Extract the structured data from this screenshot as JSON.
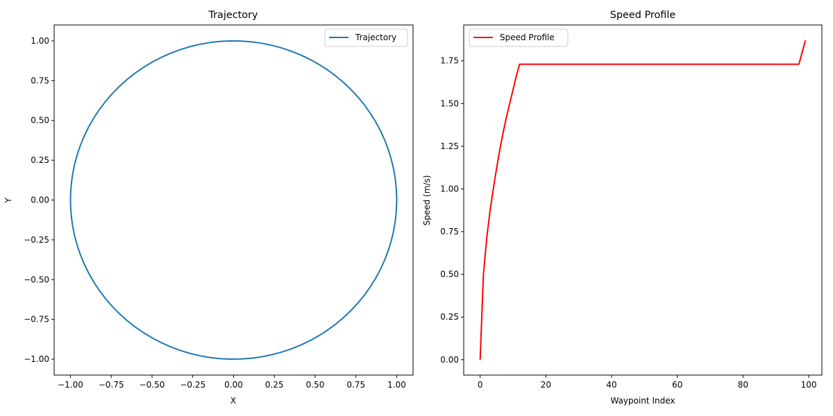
{
  "chart_data": [
    {
      "type": "line",
      "title": "Trajectory",
      "xlabel": "X",
      "ylabel": "Y",
      "xlim": [
        -1.1,
        1.1
      ],
      "ylim": [
        -1.1,
        1.1
      ],
      "xticks": [
        -1.0,
        -0.75,
        -0.5,
        -0.25,
        0.0,
        0.25,
        0.5,
        0.75,
        1.0
      ],
      "xtick_labels": [
        "−1.00",
        "−0.75",
        "−0.50",
        "−0.25",
        "0.00",
        "0.25",
        "0.50",
        "0.75",
        "1.00"
      ],
      "yticks": [
        -1.0,
        -0.75,
        -0.5,
        -0.25,
        0.0,
        0.25,
        0.5,
        0.75,
        1.0
      ],
      "ytick_labels": [
        "−1.00",
        "−0.75",
        "−0.50",
        "−0.25",
        "0.00",
        "0.25",
        "0.50",
        "0.75",
        "1.00"
      ],
      "grid": false,
      "legend": "upper right",
      "series": [
        {
          "name": "Trajectory",
          "color": "#1f77b4",
          "shape": "circle",
          "center": [
            0,
            0
          ],
          "radius": 1.0,
          "points": 100
        }
      ]
    },
    {
      "type": "line",
      "title": "Speed Profile",
      "xlabel": "Waypoint Index",
      "ylabel": "Speed (m/s)",
      "xlim": [
        -5,
        104
      ],
      "ylim": [
        -0.09,
        1.96
      ],
      "xticks": [
        0,
        20,
        40,
        60,
        80,
        100
      ],
      "xtick_labels": [
        "0",
        "20",
        "40",
        "60",
        "80",
        "100"
      ],
      "yticks": [
        0.0,
        0.25,
        0.5,
        0.75,
        1.0,
        1.25,
        1.5,
        1.75
      ],
      "ytick_labels": [
        "0.00",
        "0.25",
        "0.50",
        "0.75",
        "1.00",
        "1.25",
        "1.50",
        "1.75"
      ],
      "grid": false,
      "legend": "upper left",
      "series": [
        {
          "name": "Speed Profile",
          "color": "#ff0000",
          "x": [
            0,
            1,
            2,
            3,
            4,
            5,
            6,
            7,
            8,
            9,
            10,
            11,
            12,
            20,
            40,
            60,
            80,
            97,
            98,
            99
          ],
          "y": [
            0.0,
            0.5,
            0.71,
            0.87,
            1.0,
            1.12,
            1.23,
            1.33,
            1.42,
            1.5,
            1.58,
            1.66,
            1.73,
            1.73,
            1.73,
            1.73,
            1.73,
            1.73,
            1.8,
            1.87
          ]
        }
      ]
    }
  ]
}
